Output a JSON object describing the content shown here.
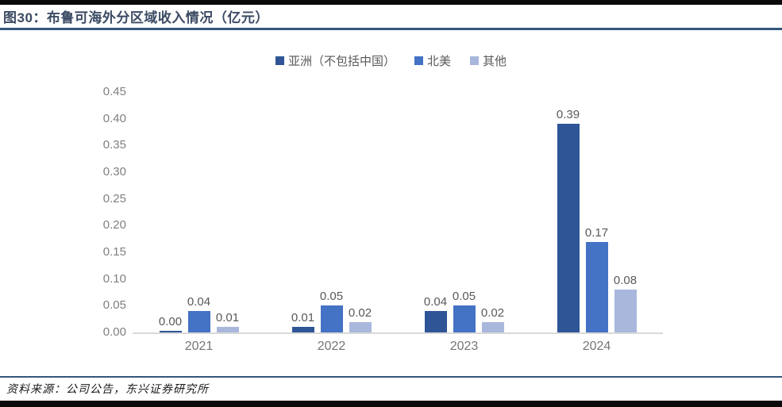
{
  "header": {
    "title": "图30：布鲁可海外分区域收入情况（亿元）"
  },
  "footer": {
    "source": "资料来源：公司公告，东兴证券研究所"
  },
  "colors": {
    "series": [
      "#2F5597",
      "#4472C4",
      "#A9B7DC"
    ],
    "title_text": "#3B4A63",
    "rule": "#34567C",
    "axis_text": "#7F7F7F",
    "value_label_text": "#595959",
    "baseline": "#D9D9D9"
  },
  "chart_data": {
    "type": "bar",
    "title": "图30：布鲁可海外分区域收入情况（亿元）",
    "xlabel": "",
    "ylabel": "",
    "categories": [
      "2021",
      "2022",
      "2023",
      "2024"
    ],
    "series": [
      {
        "name": "亚洲（不包括中国）",
        "values": [
          0.0,
          0.01,
          0.04,
          0.39
        ]
      },
      {
        "name": "北美",
        "values": [
          0.04,
          0.05,
          0.05,
          0.17
        ]
      },
      {
        "name": "其他",
        "values": [
          0.01,
          0.02,
          0.02,
          0.08
        ]
      }
    ],
    "value_labels": [
      [
        "0.00",
        "0.01",
        "0.04",
        "0.39"
      ],
      [
        "0.04",
        "0.05",
        "0.05",
        "0.17"
      ],
      [
        "0.01",
        "0.02",
        "0.02",
        "0.08"
      ]
    ],
    "ylim": [
      0,
      0.45
    ],
    "yticks": [
      0.0,
      0.05,
      0.1,
      0.15,
      0.2,
      0.25,
      0.3,
      0.35,
      0.4,
      0.45
    ],
    "ytick_labels": [
      "0.00",
      "0.05",
      "0.10",
      "0.15",
      "0.20",
      "0.25",
      "0.30",
      "0.35",
      "0.40",
      "0.45"
    ],
    "grid": false,
    "legend_position": "top"
  }
}
